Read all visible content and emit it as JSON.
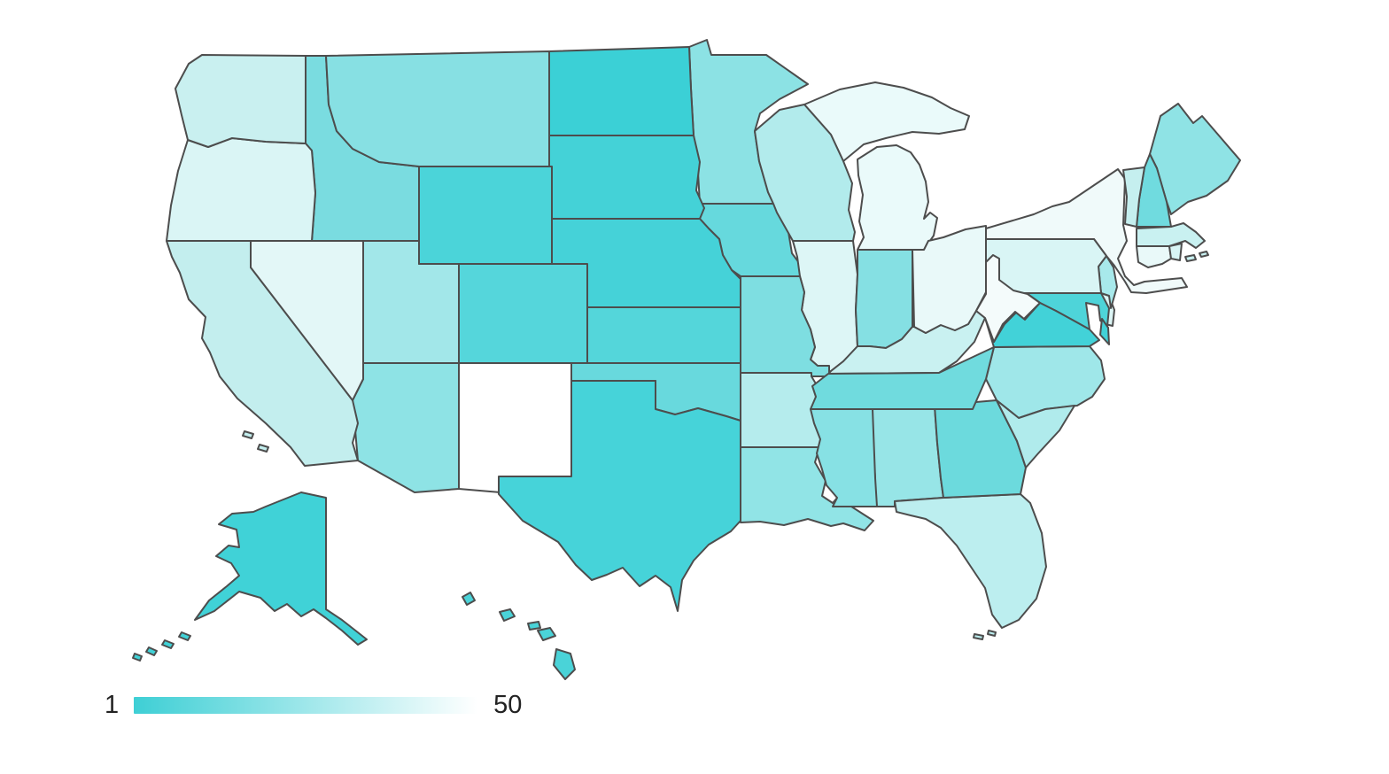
{
  "map": {
    "border_color": "#4d4d4d",
    "background": "#ffffff"
  },
  "legend": {
    "min_label": "1",
    "max_label": "50",
    "gradient_start": "#3ecfd5",
    "gradient_end": "#ffffff"
  },
  "chart_data": {
    "type": "choropleth",
    "geography": "United States states (Albers-style layout, Alaska and Hawaii insets at lower left)",
    "color_scale": {
      "min": 1,
      "max": 50,
      "min_color": "#3ecfd5",
      "max_color": "#ffffff",
      "note": "1 = darkest teal, 50 = white; values below estimated from fill color"
    },
    "states": [
      {
        "id": "AK",
        "name": "Alaska",
        "color": "#40d2d7",
        "estimated_rank": 2
      },
      {
        "id": "AL",
        "name": "Alabama",
        "color": "#97e5e7",
        "estimated_rank": 26
      },
      {
        "id": "AR",
        "name": "Arkansas",
        "color": "#b5eced",
        "estimated_rank": 32
      },
      {
        "id": "AZ",
        "name": "Arizona",
        "color": "#8ee3e5",
        "estimated_rank": 23
      },
      {
        "id": "CA",
        "name": "California",
        "color": "#c3eeee",
        "estimated_rank": 34
      },
      {
        "id": "CO",
        "name": "Colorado",
        "color": "#55d6db",
        "estimated_rank": 10
      },
      {
        "id": "CT",
        "name": "Connecticut",
        "color": "#e9f9f9",
        "estimated_rank": 45
      },
      {
        "id": "DE",
        "name": "Delaware",
        "color": "#dcf5f5",
        "estimated_rank": 42
      },
      {
        "id": "FL",
        "name": "Florida",
        "color": "#bceeef",
        "estimated_rank": 33
      },
      {
        "id": "GA",
        "name": "Georgia",
        "color": "#6cdadd",
        "estimated_rank": 14
      },
      {
        "id": "HI",
        "name": "Hawaii",
        "color": "#4ad3d8",
        "estimated_rank": 8
      },
      {
        "id": "IA",
        "name": "Iowa",
        "color": "#66d9dd",
        "estimated_rank": 12
      },
      {
        "id": "ID",
        "name": "Idaho",
        "color": "#7adce0",
        "estimated_rank": 17
      },
      {
        "id": "IL",
        "name": "Illinois",
        "color": "#ddf6f6",
        "estimated_rank": 43
      },
      {
        "id": "IN",
        "name": "Indiana",
        "color": "#85e0e3",
        "estimated_rank": 19
      },
      {
        "id": "KS",
        "name": "Kansas",
        "color": "#54d6da",
        "estimated_rank": 11
      },
      {
        "id": "KY",
        "name": "Kentucky",
        "color": "#c9f1f1",
        "estimated_rank": 36
      },
      {
        "id": "LA",
        "name": "Louisiana",
        "color": "#91e4e6",
        "estimated_rank": 22
      },
      {
        "id": "MA",
        "name": "Massachusetts",
        "color": "#c9f1f1",
        "estimated_rank": 37
      },
      {
        "id": "MD",
        "name": "Maryland",
        "color": "#4ed4d9",
        "estimated_rank": 9
      },
      {
        "id": "ME",
        "name": "Maine",
        "color": "#8fe3e5",
        "estimated_rank": 24
      },
      {
        "id": "MI",
        "name": "Michigan",
        "color": "#eafafa",
        "estimated_rank": 47
      },
      {
        "id": "MN",
        "name": "Minnesota",
        "color": "#8ce2e4",
        "estimated_rank": 25
      },
      {
        "id": "MO",
        "name": "Missouri",
        "color": "#7edee1",
        "estimated_rank": 18
      },
      {
        "id": "MS",
        "name": "Mississippi",
        "color": "#87e1e4",
        "estimated_rank": 20
      },
      {
        "id": "MT",
        "name": "Montana",
        "color": "#87e0e3",
        "estimated_rank": 21
      },
      {
        "id": "NC",
        "name": "North Carolina",
        "color": "#9fe7e9",
        "estimated_rank": 27
      },
      {
        "id": "ND",
        "name": "North Dakota",
        "color": "#3bd0d6",
        "estimated_rank": 1
      },
      {
        "id": "NE",
        "name": "Nebraska",
        "color": "#45d2d8",
        "estimated_rank": 5
      },
      {
        "id": "NH",
        "name": "New Hampshire",
        "color": "#70dbdf",
        "estimated_rank": 16
      },
      {
        "id": "NJ",
        "name": "New Jersey",
        "color": "#a8e9eb",
        "estimated_rank": 29
      },
      {
        "id": "NM",
        "name": "New Mexico",
        "color": "#ffffff",
        "estimated_rank": 50
      },
      {
        "id": "NV",
        "name": "Nevada",
        "color": "#e3f7f7",
        "estimated_rank": 44
      },
      {
        "id": "NY",
        "name": "New York",
        "color": "#f0fafa",
        "estimated_rank": 48
      },
      {
        "id": "OH",
        "name": "Ohio",
        "color": "#e9f9f9",
        "estimated_rank": 46
      },
      {
        "id": "OK",
        "name": "Oklahoma",
        "color": "#68d9dd",
        "estimated_rank": 13
      },
      {
        "id": "OR",
        "name": "Oregon",
        "color": "#daf5f5",
        "estimated_rank": 41
      },
      {
        "id": "PA",
        "name": "Pennsylvania",
        "color": "#d9f5f5",
        "estimated_rank": 40
      },
      {
        "id": "RI",
        "name": "Rhode Island",
        "color": "#d8f5f5",
        "estimated_rank": 39
      },
      {
        "id": "SC",
        "name": "South Carolina",
        "color": "#b0ebec",
        "estimated_rank": 30
      },
      {
        "id": "SD",
        "name": "South Dakota",
        "color": "#44d2d7",
        "estimated_rank": 4
      },
      {
        "id": "TN",
        "name": "Tennessee",
        "color": "#70dbde",
        "estimated_rank": 15
      },
      {
        "id": "TX",
        "name": "Texas",
        "color": "#46d3d9",
        "estimated_rank": 6
      },
      {
        "id": "UT",
        "name": "Utah",
        "color": "#a2e7e9",
        "estimated_rank": 28
      },
      {
        "id": "VA",
        "name": "Virginia",
        "color": "#42d2d8",
        "estimated_rank": 3
      },
      {
        "id": "VT",
        "name": "Vermont",
        "color": "#c5efef",
        "estimated_rank": 35
      },
      {
        "id": "WA",
        "name": "Washington",
        "color": "#c9f0f0",
        "estimated_rank": 38
      },
      {
        "id": "WI",
        "name": "Wisconsin",
        "color": "#b2ebec",
        "estimated_rank": 31
      },
      {
        "id": "WV",
        "name": "West Virginia",
        "color": "#f4fbfb",
        "estimated_rank": 49
      },
      {
        "id": "WY",
        "name": "Wyoming",
        "color": "#4bd4d9",
        "estimated_rank": 7
      }
    ]
  }
}
